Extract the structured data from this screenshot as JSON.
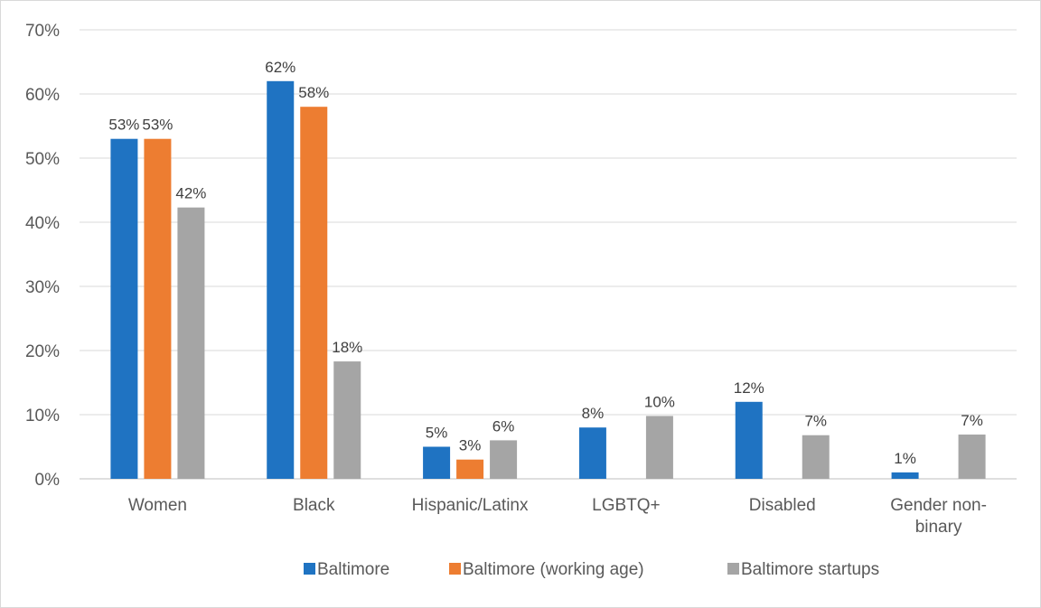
{
  "chart_data": {
    "type": "bar",
    "categories": [
      [
        "Women"
      ],
      [
        "Black"
      ],
      [
        "Hispanic/Latinx"
      ],
      [
        "LGBTQ+"
      ],
      [
        "Disabled"
      ],
      [
        "Gender non-",
        "binary"
      ]
    ],
    "series": [
      {
        "name": "Baltimore",
        "color": "#1f73c2",
        "values": [
          53,
          62,
          5,
          8,
          12,
          1
        ],
        "labels": [
          "53%",
          "62%",
          "5%",
          "8%",
          "12%",
          "1%"
        ]
      },
      {
        "name": "Baltimore (working age)",
        "color": "#ed7d31",
        "values": [
          53,
          58,
          3,
          null,
          null,
          null
        ],
        "labels": [
          "53%",
          "58%",
          "3%",
          null,
          null,
          null
        ]
      },
      {
        "name": "Baltimore startups",
        "color": "#a5a5a5",
        "values": [
          42.3,
          18.3,
          6,
          9.8,
          6.8,
          6.9
        ],
        "labels": [
          "42%",
          "18%",
          "6%",
          "10%",
          "7%",
          "7%"
        ]
      }
    ],
    "y_ticks": [
      "0%",
      "10%",
      "20%",
      "30%",
      "40%",
      "50%",
      "60%",
      "70%"
    ],
    "ylim": [
      0,
      70
    ],
    "grid": true,
    "legend": "bottom",
    "xlabel": "",
    "ylabel": ""
  }
}
